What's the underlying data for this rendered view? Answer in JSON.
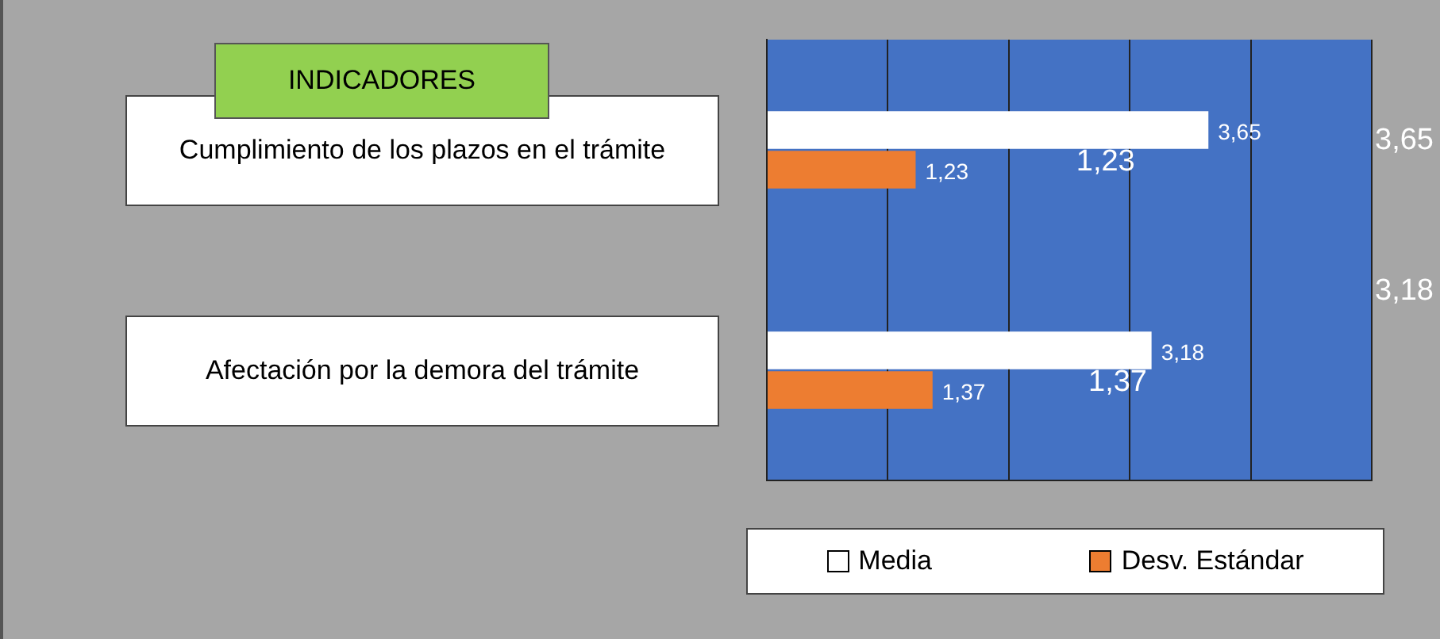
{
  "chart_data": {
    "type": "bar",
    "orientation": "horizontal",
    "ylabel": "INDICADORES",
    "categories": [
      "Cumplimiento de los plazos en el trámite",
      "Afectación por la demora del trámite"
    ],
    "series": [
      {
        "name": "Media",
        "color": "#ffffff",
        "values": [
          3.65,
          3.18
        ],
        "value_labels": [
          "3,65",
          "3,18"
        ]
      },
      {
        "name": "Desv. Estándar",
        "color": "#ed7d31",
        "values": [
          1.23,
          1.37
        ],
        "value_labels": [
          "1,23",
          "1,37"
        ]
      }
    ],
    "xlim": [
      0,
      5
    ],
    "xticks": [
      {
        "value": 0,
        "label": null
      },
      {
        "value": 1,
        "label": null
      },
      {
        "value": 2,
        "label": null
      },
      {
        "value": 3,
        "label": null
      },
      {
        "value": 4,
        "label": null
      },
      {
        "value": 5,
        "label": null
      }
    ],
    "tick_labels": false,
    "grid": "x",
    "legend": "bottom",
    "annotations": [
      {
        "text": "1,23",
        "x": 2.8,
        "y": "Cumplimiento de los plazos en el trámite"
      },
      {
        "text": "1,37",
        "x": 2.9,
        "y": "Afectación por la demora del trámite"
      },
      "3,65",
      "3,18"
    ]
  }
}
